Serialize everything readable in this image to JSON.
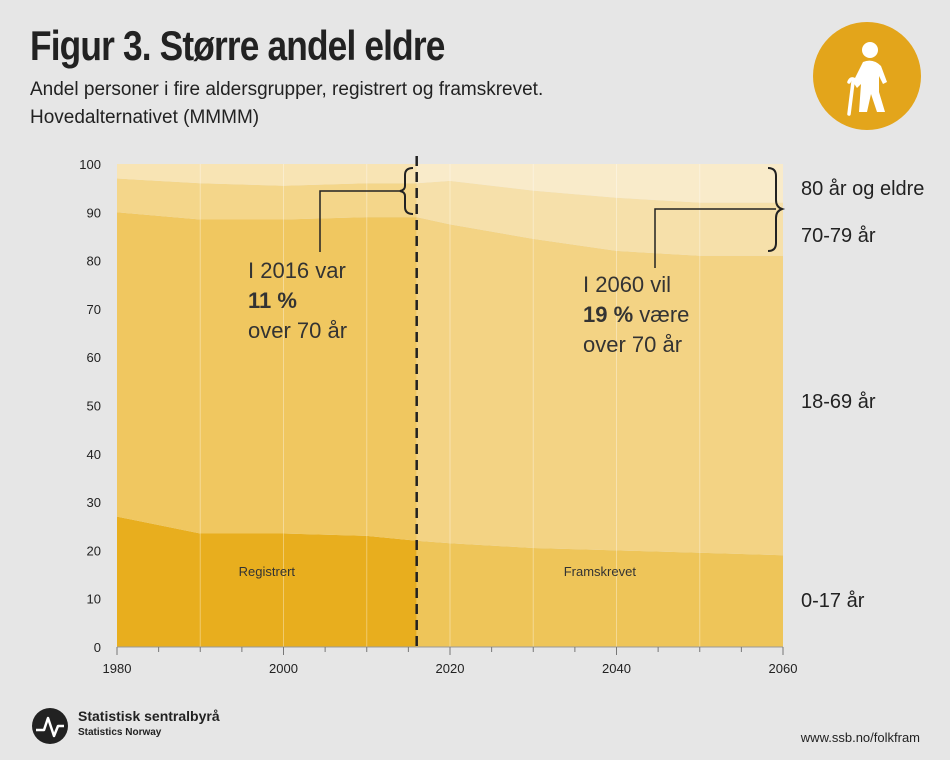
{
  "header": {
    "title": "Figur 3. Større andel eldre",
    "subtitle_line1": "Andel personer i fire aldersgrupper, registrert og framskrevet.",
    "subtitle_line2": "Hovedalternativet (MMMM)"
  },
  "icon": {
    "name": "elderly-person-icon",
    "color": "#e3a51b"
  },
  "chart_data": {
    "type": "area",
    "stacked": true,
    "title": "Figur 3. Større andel eldre",
    "xlim": [
      1980,
      2060
    ],
    "ylim": [
      0,
      100
    ],
    "x_ticks": [
      1980,
      2000,
      2020,
      2040,
      2060
    ],
    "y_ticks": [
      0,
      10,
      20,
      30,
      40,
      50,
      60,
      70,
      80,
      90,
      100
    ],
    "split_year": 2016,
    "x": [
      1980,
      1990,
      2000,
      2010,
      2016,
      2020,
      2030,
      2040,
      2050,
      2060
    ],
    "series": [
      {
        "name": "0-17 år",
        "values": [
          27,
          23.5,
          23.5,
          23,
          22,
          21.5,
          20.5,
          20,
          19.5,
          19
        ]
      },
      {
        "name": "18-69 år",
        "values": [
          63,
          65,
          65,
          66,
          67,
          66,
          64,
          62,
          61.5,
          62
        ]
      },
      {
        "name": "70-79 år",
        "values": [
          7,
          7.5,
          7,
          7,
          7,
          9,
          10,
          11,
          11,
          11
        ]
      },
      {
        "name": "80 år og eldre",
        "values": [
          3,
          4,
          4.5,
          4,
          4,
          3.5,
          5.5,
          7,
          8,
          8
        ]
      }
    ],
    "colors": {
      "registered": [
        "#e8ae1e",
        "#f0c760",
        "#f4d68a",
        "#f8e4b4"
      ],
      "projected": [
        "#eec559",
        "#f3d384",
        "#f6e0aa",
        "#f9ebca"
      ]
    },
    "region_labels": {
      "registered": "Registrert",
      "projected": "Framskrevet"
    },
    "annotations": {
      "a2016": {
        "line1": "I 2016 var",
        "bold": "11 %",
        "line3": "over 70 år"
      },
      "a2060": {
        "line1": "I 2060 vil",
        "bold": "19 %",
        "after_bold": " være",
        "line3": "over 70 år"
      }
    }
  },
  "footer": {
    "logo_line1": "Statistisk sentralbyrå",
    "logo_line2": "Statistics Norway",
    "url": "www.ssb.no/folkfram"
  }
}
